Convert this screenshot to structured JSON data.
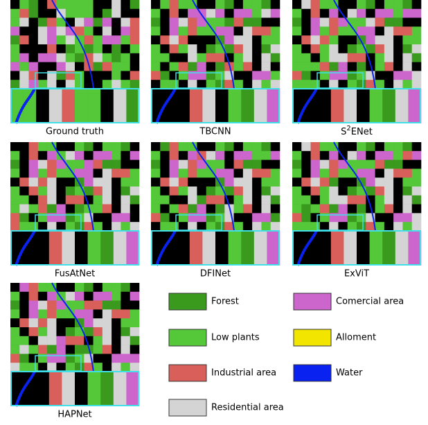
{
  "panels": [
    {
      "caption": "Ground truth"
    },
    {
      "caption": "TBCNN"
    },
    {
      "caption_parts": [
        "S",
        "2",
        "ENet"
      ]
    },
    {
      "caption": "FusAtNet"
    },
    {
      "caption": "DFINet"
    },
    {
      "caption": "ExViT"
    },
    {
      "caption": "HAPNet"
    }
  ],
  "legend": [
    {
      "label": "Forest",
      "color": "#3a9a1e"
    },
    {
      "label": "Low plants",
      "color": "#55c83a"
    },
    {
      "label": "Industrial area",
      "color": "#d9605a"
    },
    {
      "label": "Residential area",
      "color": "#d4d4d4"
    },
    {
      "label": "Comercial area",
      "color": "#cc66cc"
    },
    {
      "label": "Alloment",
      "color": "#f2e600"
    },
    {
      "label": "Water",
      "color": "#0a22f0"
    }
  ]
}
